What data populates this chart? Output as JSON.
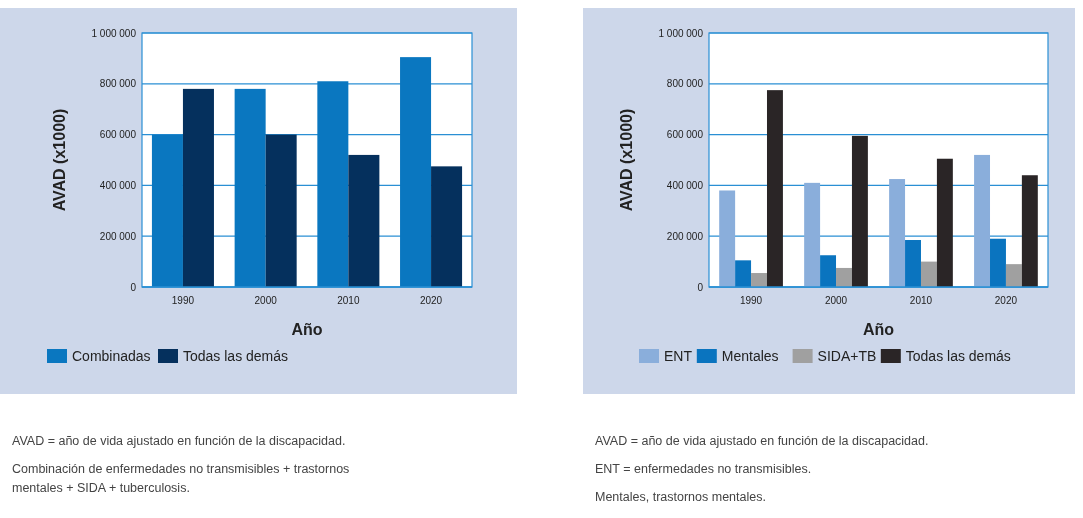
{
  "chart_data": [
    {
      "type": "bar",
      "xlabel": "Año",
      "ylabel": "AVAD (x1000)",
      "categories": [
        "1990",
        "2000",
        "2010",
        "2020"
      ],
      "series": [
        {
          "name": "Combinadas",
          "color": "#0a77c0",
          "values": [
            600000,
            780000,
            810000,
            905000
          ]
        },
        {
          "name": "Todas las demás",
          "color": "#05305d",
          "values": [
            780000,
            600000,
            520000,
            475000
          ]
        }
      ],
      "ylim": [
        0,
        1000000
      ],
      "yticks": [
        {
          "value": 0,
          "label": "0"
        },
        {
          "value": 200000,
          "label": "200 000"
        },
        {
          "value": 400000,
          "label": "400 000"
        },
        {
          "value": 600000,
          "label": "600 000"
        },
        {
          "value": 800000,
          "label": "800 000"
        },
        {
          "value": 1000000,
          "label": "1 000 000"
        }
      ],
      "grid": "y",
      "legend": "bottom",
      "annotations": [
        "AVAD = año de vida ajustado en función de la discapacidad.",
        "Combinación de enfermedades no transmisibles + trastornos mentales + SIDA + tuberculosis."
      ]
    },
    {
      "type": "bar",
      "xlabel": "Año",
      "ylabel": "AVAD (x1000)",
      "categories": [
        "1990",
        "2000",
        "2010",
        "2020"
      ],
      "series": [
        {
          "name": "ENT",
          "color": "#8aaedb",
          "values": [
            380000,
            410000,
            425000,
            520000
          ]
        },
        {
          "name": "Mentales",
          "color": "#0a74bf",
          "values": [
            105000,
            125000,
            185000,
            190000
          ]
        },
        {
          "name": "SIDA+TB",
          "color": "#a0a0a0",
          "values": [
            55000,
            75000,
            100000,
            90000
          ]
        },
        {
          "name": "Todas las demás",
          "color": "#2a2526",
          "values": [
            775000,
            595000,
            505000,
            440000
          ]
        }
      ],
      "ylim": [
        0,
        1000000
      ],
      "yticks": [
        {
          "value": 0,
          "label": "0"
        },
        {
          "value": 200000,
          "label": "200 000"
        },
        {
          "value": 400000,
          "label": "400 000"
        },
        {
          "value": 600000,
          "label": "600 000"
        },
        {
          "value": 800000,
          "label": "800 000"
        },
        {
          "value": 1000000,
          "label": "1 000 000"
        }
      ],
      "grid": "y",
      "legend": "bottom",
      "annotations": [
        "AVAD = año de vida ajustado en función de la discapacidad.",
        "ENT = enfermedades no transmisibles.",
        "Mentales, trastornos mentales."
      ]
    }
  ]
}
